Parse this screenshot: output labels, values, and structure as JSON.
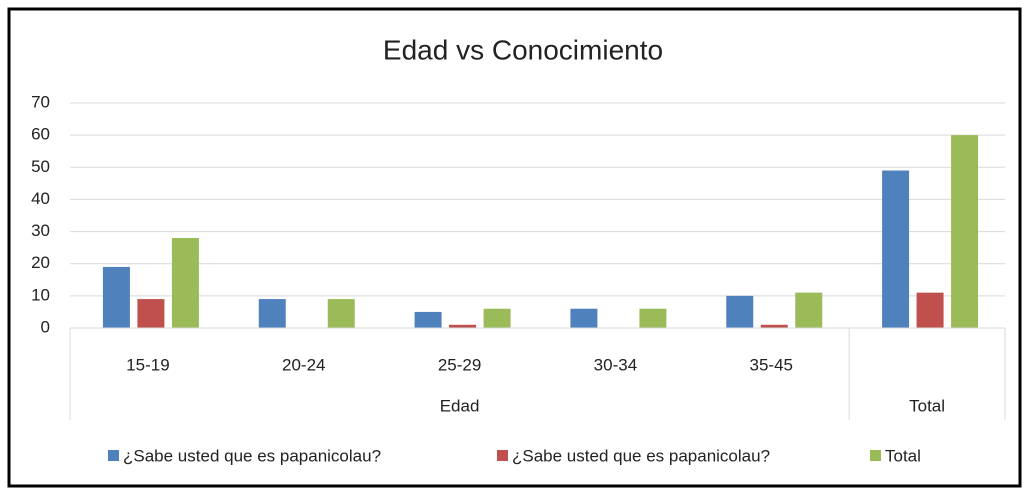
{
  "chart_data": {
    "type": "bar",
    "title": "Edad vs Conocimiento",
    "categories": [
      "15-19",
      "20-24",
      "25-29",
      "30-34",
      "35-45",
      null
    ],
    "groups": [
      {
        "name": "Edad",
        "count": 5
      },
      {
        "name": "Total",
        "count": 1
      }
    ],
    "series": [
      {
        "name": "¿Sabe usted que es papanicolau?",
        "color": "#4f81bd",
        "values": [
          19,
          9,
          5,
          6,
          10,
          49
        ]
      },
      {
        "name": "¿Sabe usted que es papanicolau?",
        "color": "#c0504d",
        "values": [
          9,
          0,
          1,
          0,
          1,
          11
        ]
      },
      {
        "name": "Total",
        "color": "#9bbb59",
        "values": [
          28,
          9,
          6,
          6,
          11,
          60
        ]
      }
    ],
    "ylim": [
      0,
      70
    ],
    "yticks": [
      0,
      10,
      20,
      30,
      40,
      50,
      60,
      70
    ],
    "grid": true,
    "legend": "bottom"
  }
}
